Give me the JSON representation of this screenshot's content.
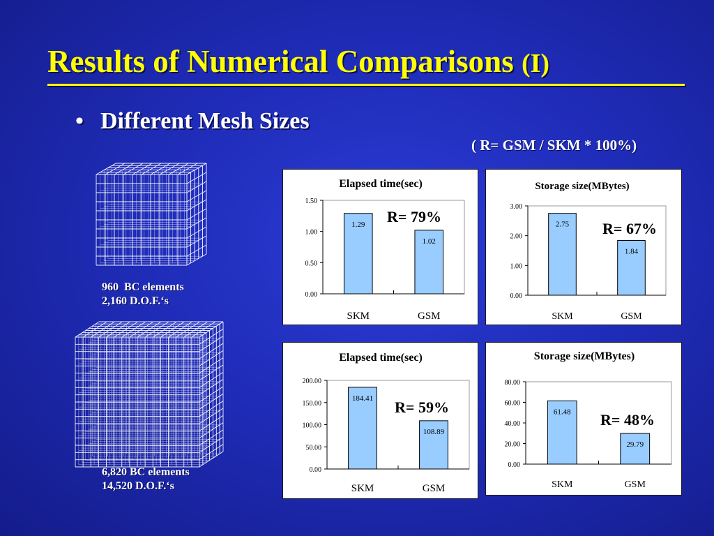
{
  "slide": {
    "title": "Results of Numerical Comparisons",
    "title_suffix": "(I)",
    "bullet_symbol": "•",
    "bullet": "Different Mesh Sizes",
    "formula": "( R= GSM / SKM * 100%)",
    "mesh_small": {
      "line1": "960  BC elements",
      "line2": "2,160 D.O.F.‘s"
    },
    "mesh_large": {
      "line1": "6,820 BC elements",
      "line2": "14,520 D.O.F.‘s"
    }
  },
  "colors": {
    "title": "#ffff00",
    "bar_fill": "#99ccff",
    "background": "#1f2cb8"
  },
  "chart_data": [
    {
      "type": "bar",
      "title": "Elapsed time(sec)",
      "categories": [
        "SKM",
        "GSM"
      ],
      "values": [
        1.29,
        1.02
      ],
      "value_labels": [
        "1.29",
        "1.02"
      ],
      "ylim": [
        0,
        1.5
      ],
      "yticks": [
        "0.00",
        "0.50",
        "1.00",
        "1.50"
      ],
      "annotation": "R= 79%",
      "grid": false
    },
    {
      "type": "bar",
      "title": "Storage size(MBytes)",
      "categories": [
        "SKM",
        "GSM"
      ],
      "values": [
        2.75,
        1.84
      ],
      "value_labels": [
        "2.75",
        "1.84"
      ],
      "ylim": [
        0,
        3
      ],
      "yticks": [
        "0.00",
        "1.00",
        "2.00",
        "3.00"
      ],
      "annotation": "R= 67%",
      "grid": false
    },
    {
      "type": "bar",
      "title": "Elapsed time(sec)",
      "categories": [
        "SKM",
        "GSM"
      ],
      "values": [
        184.41,
        108.89
      ],
      "value_labels": [
        "184.41",
        "108.89"
      ],
      "ylim": [
        0,
        200
      ],
      "yticks": [
        "0.00",
        "50.00",
        "100.00",
        "150.00",
        "200.00"
      ],
      "annotation": "R= 59%",
      "grid": false
    },
    {
      "type": "bar",
      "title": "Storage size(MBytes)",
      "categories": [
        "SKM",
        "GSM"
      ],
      "values": [
        61.48,
        29.79
      ],
      "value_labels": [
        "61.48",
        "29.79"
      ],
      "ylim": [
        0,
        80
      ],
      "yticks": [
        "0.00",
        "20.00",
        "40.00",
        "60.00",
        "80.00"
      ],
      "annotation": "R= 48%",
      "grid": false
    }
  ]
}
